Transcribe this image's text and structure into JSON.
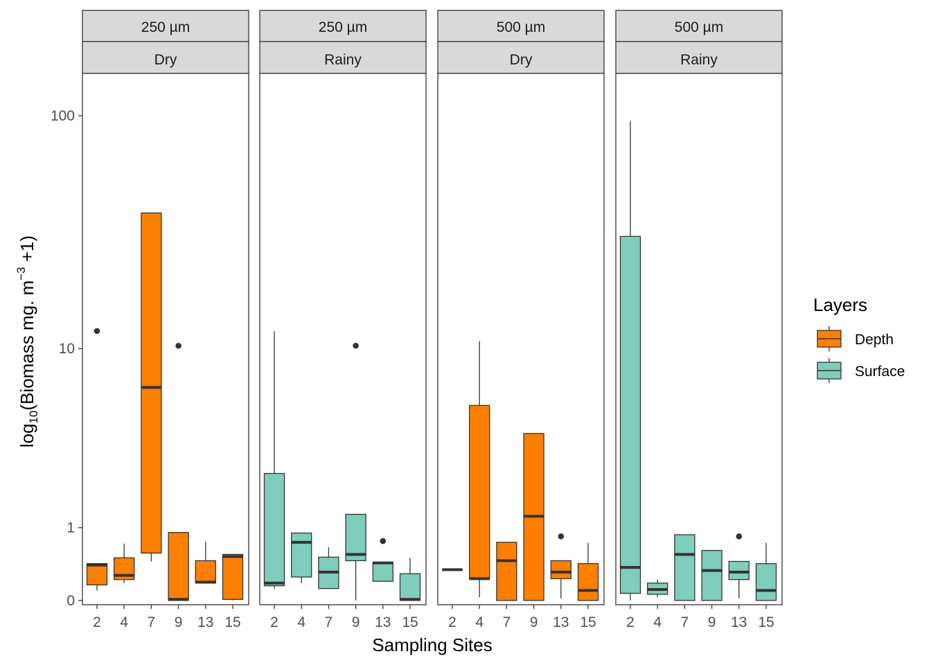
{
  "chart_data": {
    "type": "box",
    "facets": [
      {
        "size": "250 µm",
        "season": "Dry"
      },
      {
        "size": "250 µm",
        "season": "Rainy"
      },
      {
        "size": "500 µm",
        "season": "Dry"
      },
      {
        "size": "500 µm",
        "season": "Rainy"
      }
    ],
    "categories": [
      "2",
      "4",
      "7",
      "9",
      "13",
      "15"
    ],
    "xlabel": "Sampling Sites",
    "ylabel": {
      "prefix": "log",
      "sub": "10",
      "main": "(Biomass mg. m",
      "sup": "−3",
      "suffix": " +1)"
    },
    "yscale": "log10(y+1)",
    "yticks": [
      0,
      1,
      10,
      100
    ],
    "ylim": [
      -0.04,
      150
    ],
    "legend": {
      "title": "Layers",
      "position": "right",
      "entries": [
        {
          "label": "Depth",
          "color": "#FF7F00"
        },
        {
          "label": "Surface",
          "color": "#7FCDBB"
        }
      ]
    },
    "colors": {
      "Depth": "#FF7F00",
      "Surface": "#7FCDBB",
      "strip": "#D9D9D9",
      "outline": "#333333"
    },
    "series": [
      {
        "facet": 0,
        "layer": "Depth",
        "boxes": [
          {
            "site": "2",
            "min": 0.1,
            "q1": 0.16,
            "median": 0.4,
            "q3": 0.42,
            "max": 0.42,
            "outliers": [
              12
            ]
          },
          {
            "site": "4",
            "min": 0.18,
            "q1": 0.22,
            "median": 0.27,
            "q3": 0.5,
            "max": 0.72,
            "outliers": []
          },
          {
            "site": "7",
            "min": 0.45,
            "q1": 0.57,
            "median": 6.6,
            "q3": 39,
            "max": 39,
            "outliers": []
          },
          {
            "site": "9",
            "min": 0.0,
            "q1": 0.0,
            "median": 0.01,
            "q3": 0.91,
            "max": 0.91,
            "outliers": [
              10.3
            ]
          },
          {
            "site": "13",
            "min": 0.18,
            "q1": 0.18,
            "median": 0.19,
            "q3": 0.46,
            "max": 0.75,
            "outliers": []
          },
          {
            "site": "15",
            "min": 0.0,
            "q1": 0.01,
            "median": 0.52,
            "q3": 0.55,
            "max": 0.55,
            "outliers": []
          }
        ]
      },
      {
        "facet": 1,
        "layer": "Surface",
        "boxes": [
          {
            "site": "2",
            "min": 0.12,
            "q1": 0.15,
            "median": 0.18,
            "q3": 2.35,
            "max": 12,
            "outliers": []
          },
          {
            "site": "4",
            "min": 0.18,
            "q1": 0.25,
            "median": 0.74,
            "q3": 0.9,
            "max": 0.9,
            "outliers": []
          },
          {
            "site": "7",
            "min": 0.12,
            "q1": 0.12,
            "median": 0.31,
            "q3": 0.51,
            "max": 0.66,
            "outliers": []
          },
          {
            "site": "9",
            "min": 0.0,
            "q1": 0.46,
            "median": 0.55,
            "q3": 1.27,
            "max": 1.27,
            "outliers": [
              10.3
            ]
          },
          {
            "site": "13",
            "min": 0.2,
            "q1": 0.2,
            "median": 0.43,
            "q3": 0.44,
            "max": 0.44,
            "outliers": [
              0.76
            ]
          },
          {
            "site": "15",
            "min": 0.0,
            "q1": 0.0,
            "median": 0.01,
            "q3": 0.29,
            "max": 0.5,
            "outliers": []
          }
        ]
      },
      {
        "facet": 2,
        "layer": "Depth",
        "boxes": [
          {
            "site": "2",
            "min": 0.34,
            "q1": 0.34,
            "median": 0.34,
            "q3": 0.34,
            "max": 0.34,
            "outliers": []
          },
          {
            "site": "4",
            "min": 0.03,
            "q1": 0.23,
            "median": 0.23,
            "q3": 5.4,
            "max": 10.8,
            "outliers": []
          },
          {
            "site": "7",
            "min": 0.0,
            "q1": 0.0,
            "median": 0.46,
            "q3": 0.74,
            "max": 0.74,
            "outliers": []
          },
          {
            "site": "9",
            "min": 0.0,
            "q1": 0.0,
            "median": 1.23,
            "q3": 3.9,
            "max": 3.9,
            "outliers": []
          },
          {
            "site": "13",
            "min": 0.02,
            "q1": 0.23,
            "median": 0.31,
            "q3": 0.46,
            "max": 0.46,
            "outliers": [
              0.84
            ]
          },
          {
            "site": "15",
            "min": 0.0,
            "q1": 0.0,
            "median": 0.1,
            "q3": 0.42,
            "max": 0.73,
            "outliers": []
          }
        ]
      },
      {
        "facet": 3,
        "layer": "Surface",
        "boxes": [
          {
            "site": "2",
            "min": 0.0,
            "q1": 0.07,
            "median": 0.37,
            "q3": 31,
            "max": 95,
            "outliers": []
          },
          {
            "site": "4",
            "min": 0.03,
            "q1": 0.06,
            "median": 0.11,
            "q3": 0.18,
            "max": 0.22,
            "outliers": []
          },
          {
            "site": "7",
            "min": 0.0,
            "q1": 0.0,
            "median": 0.55,
            "q3": 0.87,
            "max": 0.87,
            "outliers": []
          },
          {
            "site": "9",
            "min": 0.0,
            "q1": 0.0,
            "median": 0.33,
            "q3": 0.61,
            "max": 0.61,
            "outliers": []
          },
          {
            "site": "13",
            "min": 0.02,
            "q1": 0.22,
            "median": 0.31,
            "q3": 0.45,
            "max": 0.45,
            "outliers": [
              0.84
            ]
          },
          {
            "site": "15",
            "min": 0.0,
            "q1": 0.0,
            "median": 0.1,
            "q3": 0.42,
            "max": 0.73,
            "outliers": []
          }
        ]
      }
    ]
  }
}
